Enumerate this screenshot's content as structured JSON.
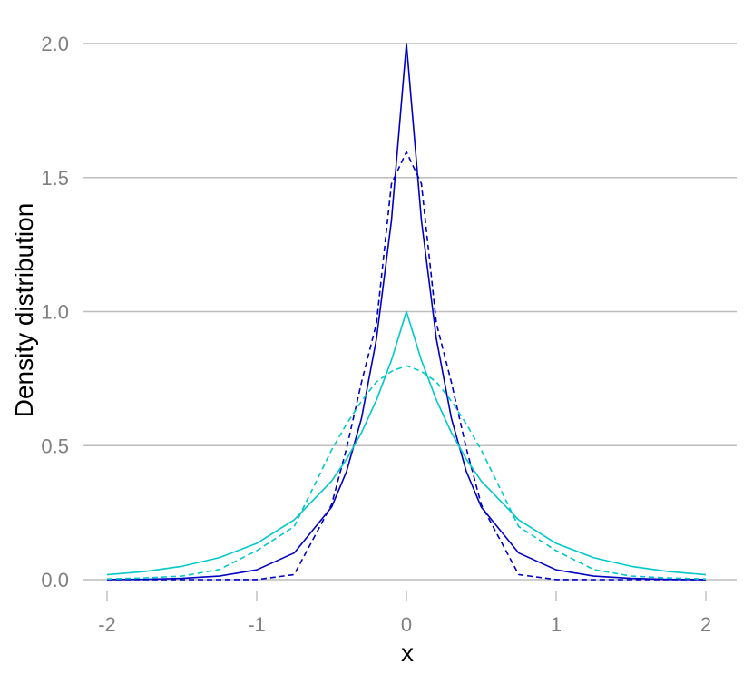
{
  "chart_data": {
    "type": "line",
    "title": "",
    "xlabel": "x",
    "ylabel": "Density distribution",
    "xlim": [
      -2,
      2
    ],
    "ylim": [
      0,
      2
    ],
    "x_ticks": [
      -2,
      -1,
      0,
      1,
      2
    ],
    "x_tick_labels": [
      "-2",
      "-1",
      "0",
      "1",
      "2"
    ],
    "y_ticks": [
      0,
      0.5,
      1,
      1.5,
      2
    ],
    "y_tick_labels": [
      "0.0",
      "0.5",
      "1.0",
      "1.5",
      "2.0"
    ],
    "grid": "horizontal major lines",
    "legend": "none",
    "x": [
      -2,
      -1.75,
      -1.5,
      -1.25,
      -1,
      -0.75,
      -0.5,
      -0.4,
      -0.3,
      -0.2,
      -0.1,
      0,
      0.1,
      0.2,
      0.3,
      0.4,
      0.5,
      0.75,
      1,
      1.25,
      1.5,
      1.75,
      2
    ],
    "series": [
      {
        "color": "#0000c0",
        "line_style": "solid",
        "values": [
          0.0003,
          0.0012,
          0.005,
          0.0134,
          0.0366,
          0.0996,
          0.2707,
          0.4038,
          0.6024,
          0.8987,
          1.3406,
          2.0,
          1.3406,
          0.8987,
          0.6024,
          0.4038,
          0.2707,
          0.0996,
          0.0366,
          0.0134,
          0.005,
          0.0012,
          0.0003
        ]
      },
      {
        "color": "#0000c0",
        "line_style": "dashed",
        "values": [
          0.0,
          0.0,
          0.0,
          0.0,
          0.0003,
          0.0187,
          0.2799,
          0.4897,
          0.7366,
          0.9568,
          1.4769,
          1.5958,
          1.4769,
          0.9568,
          0.7366,
          0.4897,
          0.2799,
          0.0187,
          0.0003,
          0.0,
          0.0,
          0.0,
          0.0
        ]
      },
      {
        "color": "#00c8c8",
        "line_style": "solid",
        "values": [
          0.0183,
          0.0302,
          0.0498,
          0.0821,
          0.1353,
          0.2231,
          0.3679,
          0.4493,
          0.5488,
          0.6703,
          0.8187,
          1.0,
          0.8187,
          0.6703,
          0.5488,
          0.4493,
          0.3679,
          0.2231,
          0.1353,
          0.0821,
          0.0498,
          0.0302,
          0.0183
        ]
      },
      {
        "color": "#00c8c8",
        "line_style": "dashed",
        "values": [
          0.0027,
          0.0064,
          0.0133,
          0.0378,
          0.1082,
          0.1979,
          0.4839,
          0.5807,
          0.6664,
          0.738,
          0.777,
          0.7979,
          0.777,
          0.738,
          0.6664,
          0.5807,
          0.4839,
          0.1979,
          0.1082,
          0.0378,
          0.0133,
          0.0064,
          0.0027
        ]
      }
    ]
  }
}
